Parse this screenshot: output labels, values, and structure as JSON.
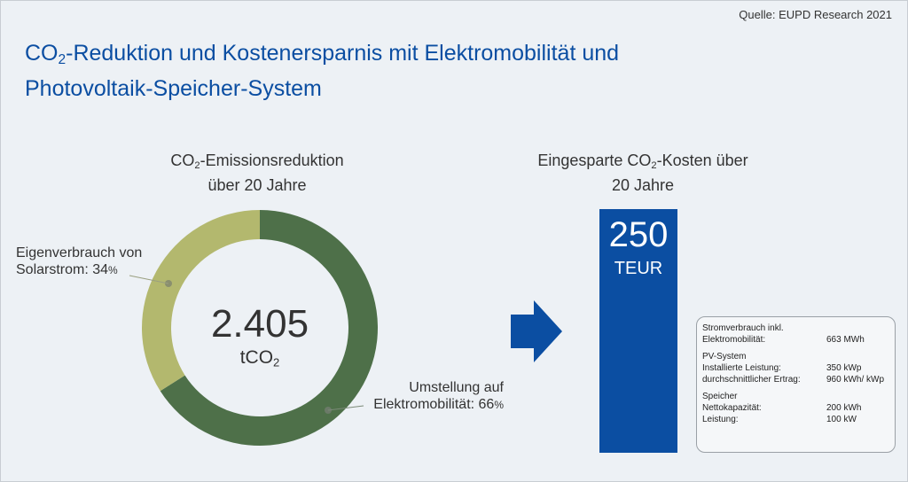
{
  "source": "Quelle: EUPD  Research 2021",
  "title": {
    "line1_pre": "CO",
    "line1_sub": "2",
    "line1_post": "-Reduktion und Kostenersparnis mit Elektromobilität und",
    "line2": "Photovoltaik-Speicher-System"
  },
  "colors": {
    "accent": "#0b4ea2",
    "donut_dark": "#4e7049",
    "donut_light": "#b3b86e",
    "background": "#edf1f5"
  },
  "chart_data": [
    {
      "type": "pie",
      "title": "CO2-Emissionsreduktion über 20 Jahre",
      "total": "2.405",
      "unit": "tCO2",
      "slices": [
        {
          "label": "Umstellung auf Elektromobilität",
          "value": 66
        },
        {
          "label": "Eigenverbrauch von Solarstrom",
          "value": 34
        }
      ]
    },
    {
      "type": "bar",
      "title": "Eingesparte CO2-Kosten über 20 Jahre",
      "categories": [
        ""
      ],
      "values": [
        250
      ],
      "unit": "TEUR"
    }
  ],
  "donut": {
    "heading_pre": "CO",
    "heading_sub": "2",
    "heading_post": "-Emissionsreduktion",
    "heading_line2": "über 20 Jahre",
    "center_value": "2.405",
    "center_unit_pre": "tCO",
    "center_unit_sub": "2",
    "label_left_line1": "Eigenverbrauch von",
    "label_left_line2": "Solarstrom: 34",
    "label_right_line1": "Umstellung auf",
    "label_right_line2": "Elektromobilität: 66",
    "percent_sign": "%"
  },
  "savings": {
    "heading_pre": "Eingesparte CO",
    "heading_sub": "2",
    "heading_post": "-Kosten über",
    "heading_line2": "20 Jahre",
    "value": "250",
    "unit": "TEUR"
  },
  "info_box": {
    "groups": [
      {
        "title": "Stromverbrauch inkl.",
        "rows": [
          {
            "key": "Elektromobilität:",
            "value": "663 MWh"
          }
        ]
      },
      {
        "title": "PV-System",
        "rows": [
          {
            "key": "Installierte Leistung:",
            "value": "350 kWp"
          },
          {
            "key": "durchschnittlicher Ertrag:",
            "value": "960 kWh/ kWp"
          }
        ]
      },
      {
        "title": "Speicher",
        "rows": [
          {
            "key": "Nettokapazität:",
            "value": "200 kWh"
          },
          {
            "key": "Leistung:",
            "value": "100 kW"
          }
        ]
      }
    ]
  }
}
